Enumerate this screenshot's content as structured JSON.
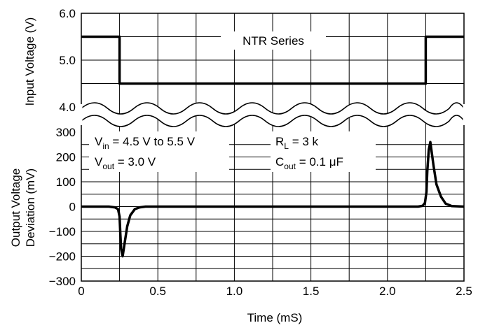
{
  "chart_data": {
    "type": "line",
    "xlabel": "Time (mS)",
    "x_ticks": [
      "0",
      "0.5",
      "1.0",
      "1.5",
      "2.0",
      "2.5"
    ],
    "xlim": [
      0,
      2.5
    ],
    "panels": [
      {
        "name": "input",
        "ylabel": "Input Voltage (V)",
        "ylim": [
          4.0,
          6.0
        ],
        "y_ticks": [
          "6.0",
          "5.0",
          "4.0"
        ],
        "label": "NTR Series",
        "series": [
          {
            "x": [
              0,
              0.25,
              0.25,
              2.25,
              2.25,
              2.5
            ],
            "y": [
              5.5,
              5.5,
              4.5,
              4.5,
              5.5,
              5.5
            ]
          }
        ]
      },
      {
        "name": "output",
        "ylabel_line1": "Output Voltage",
        "ylabel_line2": "Deviation (mV)",
        "ylim": [
          -300,
          300
        ],
        "y_ticks": [
          "300",
          "200",
          "100",
          "0",
          "−100",
          "−200",
          "−300"
        ],
        "series": [
          {
            "x": [
              0,
              0.18,
              0.22,
              0.24,
              0.25,
              0.255,
              0.26,
              0.27,
              0.285,
              0.3,
              0.32,
              0.35,
              0.38,
              0.42,
              0.5,
              2.2,
              2.23,
              2.245,
              2.255,
              2.26,
              2.27,
              2.28,
              2.3,
              2.32,
              2.35,
              2.38,
              2.42,
              2.5
            ],
            "y": [
              0,
              0,
              -3,
              -10,
              -40,
              -110,
              -170,
              -200,
              -140,
              -80,
              -35,
              -10,
              -3,
              0,
              0,
              0,
              3,
              15,
              60,
              140,
              230,
              260,
              170,
              90,
              40,
              12,
              2,
              0
            ]
          }
        ],
        "annotations_left": {
          "vin_main": "V",
          "vin_sub": "in",
          "vin_rest": " = 4.5 V to 5.5 V",
          "vout_main": "V",
          "vout_sub": "out",
          "vout_rest": " = 3.0 V"
        },
        "annotations_right": {
          "rl_main": "R",
          "rl_sub": "L",
          "rl_rest": " = 3 k",
          "cout_main": "C",
          "cout_sub": "out",
          "cout_rest": " = 0.1 μF"
        }
      }
    ],
    "grid": true
  }
}
